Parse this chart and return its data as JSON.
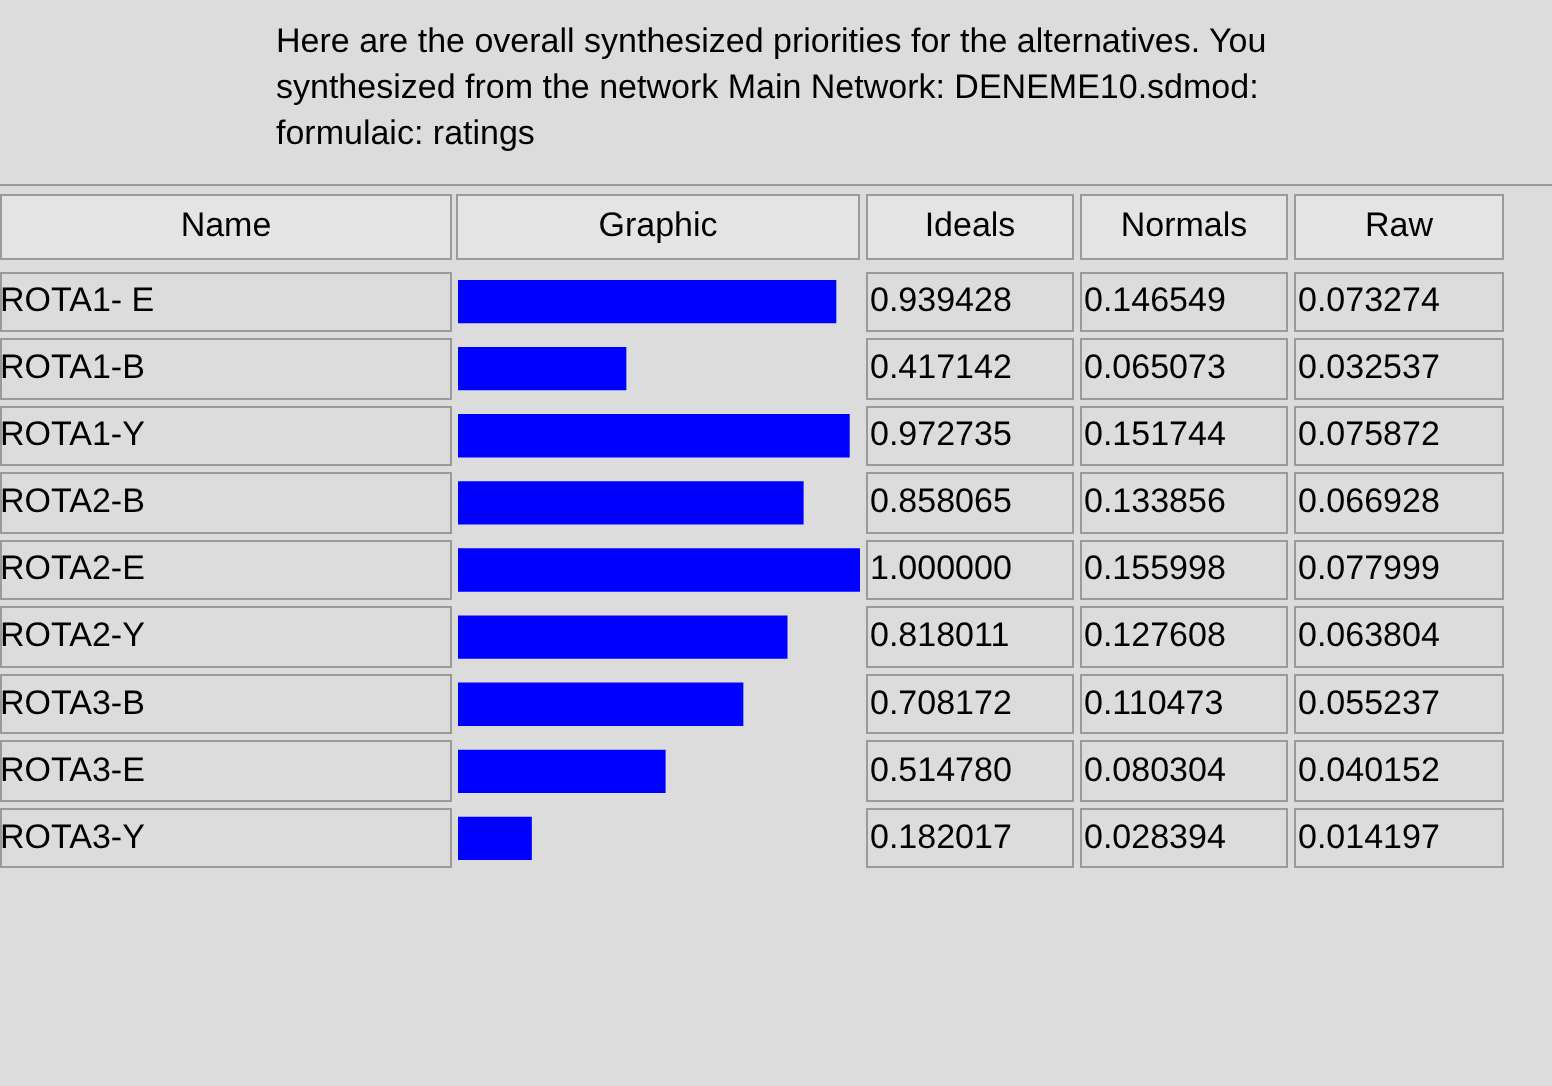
{
  "chart_data": {
    "type": "bar",
    "orientation": "horizontal",
    "title": "Here are the overall synthesized priorities for the alternatives.  You synthesized from the network Main Network: DENEME10.sdmod: formulaic: ratings",
    "ylabel": "Name",
    "xlabel": "Graphic",
    "categories": [
      "ROTA1- E",
      "ROTA1-B",
      "ROTA1-Y",
      "ROTA2-B",
      "ROTA2-E",
      "ROTA2-Y",
      "ROTA3-B",
      "ROTA3-E",
      "ROTA3-Y"
    ],
    "values": [
      0.939428,
      0.417142,
      0.972735,
      0.858065,
      1.0,
      0.818011,
      0.708172,
      0.51478,
      0.182017
    ],
    "value_labels": [
      "0.939428",
      "0.417142",
      "0.972735",
      "0.858065",
      "1.000000",
      "0.818011",
      "0.708172",
      "0.514780",
      "0.182017"
    ],
    "color": "#0000ff",
    "annotations": [
      "Ideals",
      "Normals",
      "Raw",
      "0.146549",
      "0.073274",
      "0.065073",
      "0.032537",
      "0.151744",
      "0.075872",
      "0.133856",
      "0.066928",
      "0.155998",
      "0.077999",
      "0.127608",
      "0.063804",
      "0.110473",
      "0.055237",
      "0.080304",
      "0.040152",
      "0.028394",
      "0.014197"
    ]
  }
}
